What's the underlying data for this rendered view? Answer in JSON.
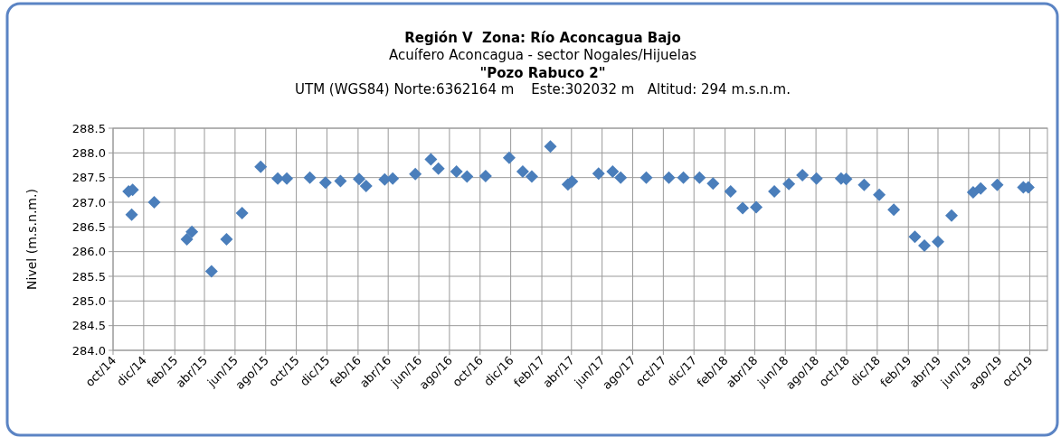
{
  "chart_data": {
    "type": "scatter",
    "title": "Región V  Zona: Río Aconcagua Bajo",
    "subtitle": "Acuífero Aconcagua - sector Nogales/Hijuelas",
    "annotations": [
      "\"Pozo Rabuco 2\"",
      "UTM (WGS84) Norte:6362164 m    Este:302032 m   Altitud: 294 m.s.n.m."
    ],
    "ylabel": "Nivel (m.s.n.m.)",
    "marker": "diamond",
    "grid": true,
    "x": [
      "2014-11-01",
      "2014-11-09",
      "2014-11-07",
      "2014-12-22",
      "2015-02-25",
      "2015-03-07",
      "2015-04-15",
      "2015-05-15",
      "2015-06-15",
      "2015-07-22",
      "2015-08-25",
      "2015-09-12",
      "2015-10-28",
      "2015-11-28",
      "2015-12-28",
      "2016-02-03",
      "2016-02-17",
      "2016-03-25",
      "2016-04-10",
      "2016-05-25",
      "2016-06-25",
      "2016-07-10",
      "2016-08-15",
      "2016-09-05",
      "2016-10-12",
      "2016-11-28",
      "2016-12-25",
      "2017-01-12",
      "2017-02-18",
      "2017-03-25",
      "2017-04-02",
      "2017-05-25",
      "2017-06-22",
      "2017-07-08",
      "2017-08-28",
      "2017-10-12",
      "2017-11-10",
      "2017-12-12",
      "2018-01-08",
      "2018-02-12",
      "2018-03-08",
      "2018-04-04",
      "2018-05-10",
      "2018-06-08",
      "2018-07-05",
      "2018-08-02",
      "2018-09-20",
      "2018-09-30",
      "2018-11-05",
      "2018-12-05",
      "2019-01-03",
      "2019-02-14",
      "2019-03-05",
      "2019-04-01",
      "2019-04-28",
      "2019-06-10",
      "2019-06-25",
      "2019-07-28",
      "2019-09-18",
      "2019-09-28"
    ],
    "series": [
      {
        "color": "#4a7ebb",
        "values": [
          287.22,
          287.25,
          286.75,
          287.0,
          286.25,
          286.4,
          285.6,
          286.25,
          286.78,
          287.72,
          287.48,
          287.48,
          287.5,
          287.4,
          287.43,
          287.47,
          287.33,
          287.46,
          287.48,
          287.57,
          287.87,
          287.68,
          287.62,
          287.52,
          287.53,
          287.9,
          287.62,
          287.52,
          288.13,
          287.36,
          287.42,
          287.58,
          287.62,
          287.5,
          287.5,
          287.5,
          287.5,
          287.5,
          287.38,
          287.22,
          286.88,
          286.9,
          287.22,
          287.37,
          287.55,
          287.48,
          287.48,
          287.47,
          287.35,
          287.15,
          286.85,
          286.3,
          286.12,
          286.2,
          286.73,
          287.2,
          287.28,
          287.35,
          287.3,
          287.3
        ]
      }
    ],
    "xlim": [
      "2014-10-01",
      "2019-11-05"
    ],
    "xticks": [
      {
        "value": "2014-10-01",
        "label": "oct/14"
      },
      {
        "value": "2014-12-01",
        "label": "dic/14"
      },
      {
        "value": "2015-02-01",
        "label": "feb/15"
      },
      {
        "value": "2015-04-01",
        "label": "abr/15"
      },
      {
        "value": "2015-06-01",
        "label": "jun/15"
      },
      {
        "value": "2015-08-01",
        "label": "ago/15"
      },
      {
        "value": "2015-10-01",
        "label": "oct/15"
      },
      {
        "value": "2015-12-01",
        "label": "dic/15"
      },
      {
        "value": "2016-02-01",
        "label": "feb/16"
      },
      {
        "value": "2016-04-01",
        "label": "abr/16"
      },
      {
        "value": "2016-06-01",
        "label": "jun/16"
      },
      {
        "value": "2016-08-01",
        "label": "ago/16"
      },
      {
        "value": "2016-10-01",
        "label": "oct/16"
      },
      {
        "value": "2016-12-01",
        "label": "dic/16"
      },
      {
        "value": "2017-02-01",
        "label": "feb/17"
      },
      {
        "value": "2017-04-01",
        "label": "abr/17"
      },
      {
        "value": "2017-06-01",
        "label": "jun/17"
      },
      {
        "value": "2017-08-01",
        "label": "ago/17"
      },
      {
        "value": "2017-10-01",
        "label": "oct/17"
      },
      {
        "value": "2017-12-01",
        "label": "dic/17"
      },
      {
        "value": "2018-02-01",
        "label": "feb/18"
      },
      {
        "value": "2018-04-01",
        "label": "abr/18"
      },
      {
        "value": "2018-06-01",
        "label": "jun/18"
      },
      {
        "value": "2018-08-01",
        "label": "ago/18"
      },
      {
        "value": "2018-10-01",
        "label": "oct/18"
      },
      {
        "value": "2018-12-01",
        "label": "dic/18"
      },
      {
        "value": "2019-02-01",
        "label": "feb/19"
      },
      {
        "value": "2019-04-01",
        "label": "abr/19"
      },
      {
        "value": "2019-06-01",
        "label": "jun/19"
      },
      {
        "value": "2019-08-01",
        "label": "ago/19"
      },
      {
        "value": "2019-10-01",
        "label": "oct/19"
      }
    ],
    "ylim": [
      284.0,
      288.5
    ],
    "yticks": [
      {
        "value": 284,
        "label": "284.0"
      },
      {
        "value": 284.5,
        "label": "284.5"
      },
      {
        "value": 285,
        "label": "285.0"
      },
      {
        "value": 285.5,
        "label": "285.5"
      },
      {
        "value": 286,
        "label": "286.0"
      },
      {
        "value": 286.5,
        "label": "286.5"
      },
      {
        "value": 287,
        "label": "287.0"
      },
      {
        "value": 287.5,
        "label": "287.5"
      },
      {
        "value": 288,
        "label": "288.0"
      },
      {
        "value": 288.5,
        "label": "288.5"
      }
    ]
  }
}
